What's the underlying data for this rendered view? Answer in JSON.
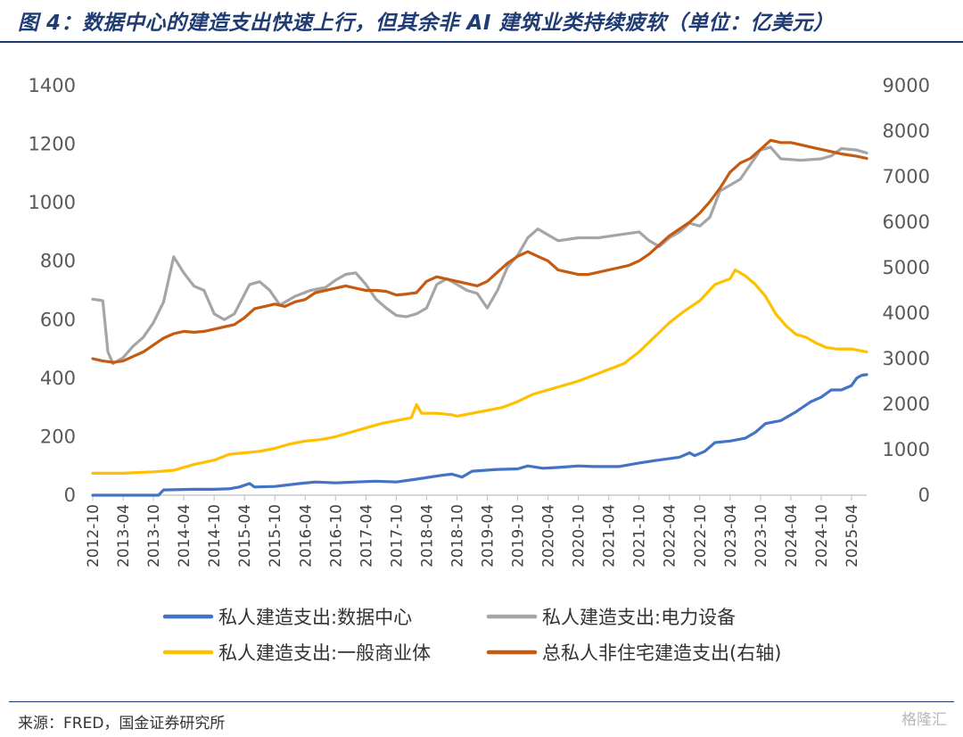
{
  "title": "图 4：数据中心的建造支出快速上行，但其余非 AI 建筑业类持续疲软（单位：亿美元）",
  "source": "来源：FRED，国金证券研究所",
  "watermark": "格隆汇",
  "colors": {
    "title": "#1f3d73",
    "data_center": "#4472c4",
    "power": "#a5a5a5",
    "commercial": "#ffc000",
    "total": "#c55a11"
  },
  "chart_data": {
    "type": "line",
    "x_tick_labels": [
      "2012-10",
      "2013-04",
      "2013-10",
      "2014-04",
      "2014-10",
      "2015-04",
      "2015-10",
      "2016-04",
      "2016-10",
      "2017-04",
      "2017-10",
      "2018-04",
      "2018-10",
      "2019-04",
      "2019-10",
      "2020-04",
      "2020-10",
      "2021-04",
      "2021-10",
      "2022-04",
      "2022-10",
      "2023-04",
      "2023-10",
      "2024-04",
      "2024-10",
      "2025-04"
    ],
    "x_range": [
      "2012-10",
      "2025-07"
    ],
    "y_left": {
      "min": 0,
      "max": 1400,
      "step": 200,
      "ticks": [
        "0",
        "200",
        "400",
        "600",
        "800",
        "1000",
        "1200",
        "1400"
      ]
    },
    "y_right": {
      "min": 0,
      "max": 9000,
      "step": 1000,
      "ticks": [
        "0",
        "1000",
        "2000",
        "3000",
        "4000",
        "5000",
        "6000",
        "7000",
        "8000",
        "9000"
      ]
    },
    "grid": false,
    "legend_position": "bottom",
    "series": [
      {
        "name": "私人建造支出:数据中心",
        "axis": "left",
        "color": "#4472c4",
        "points": [
          [
            "2012-10",
            0
          ],
          [
            "2013-03",
            0
          ],
          [
            "2013-11",
            0
          ],
          [
            "2013-12",
            18
          ],
          [
            "2014-06",
            20
          ],
          [
            "2014-10",
            20
          ],
          [
            "2015-01",
            22
          ],
          [
            "2015-03",
            28
          ],
          [
            "2015-05",
            40
          ],
          [
            "2015-06",
            28
          ],
          [
            "2015-10",
            30
          ],
          [
            "2016-03",
            40
          ],
          [
            "2016-06",
            45
          ],
          [
            "2016-10",
            42
          ],
          [
            "2017-02",
            45
          ],
          [
            "2017-06",
            48
          ],
          [
            "2017-10",
            45
          ],
          [
            "2018-02",
            55
          ],
          [
            "2018-07",
            68
          ],
          [
            "2018-09",
            72
          ],
          [
            "2018-11",
            62
          ],
          [
            "2019-01",
            82
          ],
          [
            "2019-06",
            88
          ],
          [
            "2019-10",
            90
          ],
          [
            "2019-12",
            100
          ],
          [
            "2020-03",
            92
          ],
          [
            "2020-06",
            95
          ],
          [
            "2020-10",
            100
          ],
          [
            "2021-01",
            98
          ],
          [
            "2021-06",
            98
          ],
          [
            "2021-10",
            110
          ],
          [
            "2022-01",
            118
          ],
          [
            "2022-06",
            130
          ],
          [
            "2022-08",
            145
          ],
          [
            "2022-09",
            135
          ],
          [
            "2022-11",
            150
          ],
          [
            "2023-01",
            180
          ],
          [
            "2023-04",
            185
          ],
          [
            "2023-07",
            195
          ],
          [
            "2023-09",
            215
          ],
          [
            "2023-11",
            245
          ],
          [
            "2024-02",
            255
          ],
          [
            "2024-05",
            285
          ],
          [
            "2024-08",
            320
          ],
          [
            "2024-10",
            335
          ],
          [
            "2024-12",
            360
          ],
          [
            "2025-02",
            360
          ],
          [
            "2025-04",
            375
          ],
          [
            "2025-05",
            400
          ],
          [
            "2025-06",
            410
          ],
          [
            "2025-07",
            412
          ]
        ]
      },
      {
        "name": "私人建造支出:电力设备",
        "axis": "left",
        "color": "#a5a5a5",
        "points": [
          [
            "2012-10",
            670
          ],
          [
            "2012-12",
            665
          ],
          [
            "2013-01",
            490
          ],
          [
            "2013-02",
            450
          ],
          [
            "2013-04",
            470
          ],
          [
            "2013-06",
            510
          ],
          [
            "2013-08",
            540
          ],
          [
            "2013-10",
            590
          ],
          [
            "2013-12",
            660
          ],
          [
            "2014-02",
            815
          ],
          [
            "2014-04",
            760
          ],
          [
            "2014-06",
            715
          ],
          [
            "2014-08",
            700
          ],
          [
            "2014-10",
            620
          ],
          [
            "2014-12",
            600
          ],
          [
            "2015-02",
            620
          ],
          [
            "2015-05",
            720
          ],
          [
            "2015-07",
            730
          ],
          [
            "2015-09",
            700
          ],
          [
            "2015-11",
            650
          ],
          [
            "2016-02",
            680
          ],
          [
            "2016-05",
            700
          ],
          [
            "2016-08",
            710
          ],
          [
            "2016-10",
            735
          ],
          [
            "2016-12",
            755
          ],
          [
            "2017-02",
            760
          ],
          [
            "2017-04",
            720
          ],
          [
            "2017-06",
            670
          ],
          [
            "2017-08",
            640
          ],
          [
            "2017-10",
            615
          ],
          [
            "2017-12",
            610
          ],
          [
            "2018-02",
            620
          ],
          [
            "2018-04",
            640
          ],
          [
            "2018-06",
            720
          ],
          [
            "2018-08",
            740
          ],
          [
            "2018-10",
            720
          ],
          [
            "2018-12",
            700
          ],
          [
            "2019-02",
            690
          ],
          [
            "2019-04",
            640
          ],
          [
            "2019-06",
            700
          ],
          [
            "2019-08",
            780
          ],
          [
            "2019-10",
            820
          ],
          [
            "2019-12",
            880
          ],
          [
            "2020-02",
            910
          ],
          [
            "2020-04",
            890
          ],
          [
            "2020-06",
            870
          ],
          [
            "2020-10",
            880
          ],
          [
            "2021-02",
            880
          ],
          [
            "2021-06",
            890
          ],
          [
            "2021-10",
            900
          ],
          [
            "2021-12",
            870
          ],
          [
            "2022-02",
            850
          ],
          [
            "2022-04",
            880
          ],
          [
            "2022-06",
            900
          ],
          [
            "2022-08",
            930
          ],
          [
            "2022-10",
            920
          ],
          [
            "2022-12",
            950
          ],
          [
            "2023-02",
            1040
          ],
          [
            "2023-04",
            1060
          ],
          [
            "2023-06",
            1080
          ],
          [
            "2023-08",
            1130
          ],
          [
            "2023-10",
            1180
          ],
          [
            "2023-12",
            1190
          ],
          [
            "2024-02",
            1150
          ],
          [
            "2024-06",
            1145
          ],
          [
            "2024-10",
            1150
          ],
          [
            "2024-12",
            1160
          ],
          [
            "2025-02",
            1185
          ],
          [
            "2025-05",
            1180
          ],
          [
            "2025-07",
            1170
          ]
        ]
      },
      {
        "name": "私人建造支出:一般商业体",
        "axis": "left",
        "color": "#ffc000",
        "points": [
          [
            "2012-10",
            75
          ],
          [
            "2013-04",
            75
          ],
          [
            "2013-10",
            80
          ],
          [
            "2014-02",
            85
          ],
          [
            "2014-06",
            105
          ],
          [
            "2014-10",
            120
          ],
          [
            "2015-01",
            140
          ],
          [
            "2015-04",
            145
          ],
          [
            "2015-07",
            150
          ],
          [
            "2015-10",
            160
          ],
          [
            "2016-01",
            175
          ],
          [
            "2016-04",
            185
          ],
          [
            "2016-07",
            190
          ],
          [
            "2016-10",
            200
          ],
          [
            "2017-01",
            215
          ],
          [
            "2017-04",
            230
          ],
          [
            "2017-07",
            245
          ],
          [
            "2017-10",
            255
          ],
          [
            "2018-01",
            265
          ],
          [
            "2018-02",
            310
          ],
          [
            "2018-03",
            280
          ],
          [
            "2018-06",
            280
          ],
          [
            "2018-09",
            275
          ],
          [
            "2018-10",
            270
          ],
          [
            "2019-01",
            280
          ],
          [
            "2019-04",
            290
          ],
          [
            "2019-07",
            300
          ],
          [
            "2019-10",
            320
          ],
          [
            "2020-01",
            345
          ],
          [
            "2020-04",
            360
          ],
          [
            "2020-07",
            375
          ],
          [
            "2020-10",
            390
          ],
          [
            "2021-01",
            410
          ],
          [
            "2021-04",
            430
          ],
          [
            "2021-07",
            450
          ],
          [
            "2021-10",
            490
          ],
          [
            "2022-01",
            540
          ],
          [
            "2022-04",
            590
          ],
          [
            "2022-07",
            630
          ],
          [
            "2022-10",
            665
          ],
          [
            "2023-01",
            720
          ],
          [
            "2023-04",
            740
          ],
          [
            "2023-05",
            770
          ],
          [
            "2023-07",
            750
          ],
          [
            "2023-09",
            720
          ],
          [
            "2023-11",
            680
          ],
          [
            "2024-01",
            620
          ],
          [
            "2024-03",
            580
          ],
          [
            "2024-05",
            550
          ],
          [
            "2024-07",
            540
          ],
          [
            "2024-09",
            520
          ],
          [
            "2024-11",
            505
          ],
          [
            "2025-01",
            500
          ],
          [
            "2025-04",
            500
          ],
          [
            "2025-07",
            490
          ]
        ]
      },
      {
        "name": "总私人非住宅建造支出(右轴)",
        "axis": "right",
        "color": "#c55a11",
        "points": [
          [
            "2012-10",
            3000
          ],
          [
            "2012-12",
            2950
          ],
          [
            "2013-02",
            2920
          ],
          [
            "2013-04",
            2950
          ],
          [
            "2013-06",
            3050
          ],
          [
            "2013-08",
            3150
          ],
          [
            "2013-10",
            3300
          ],
          [
            "2013-12",
            3450
          ],
          [
            "2014-02",
            3550
          ],
          [
            "2014-04",
            3600
          ],
          [
            "2014-06",
            3580
          ],
          [
            "2014-08",
            3600
          ],
          [
            "2014-10",
            3650
          ],
          [
            "2014-12",
            3700
          ],
          [
            "2015-02",
            3750
          ],
          [
            "2015-04",
            3900
          ],
          [
            "2015-06",
            4100
          ],
          [
            "2015-08",
            4150
          ],
          [
            "2015-10",
            4200
          ],
          [
            "2015-12",
            4150
          ],
          [
            "2016-02",
            4250
          ],
          [
            "2016-04",
            4300
          ],
          [
            "2016-06",
            4450
          ],
          [
            "2016-08",
            4500
          ],
          [
            "2016-10",
            4550
          ],
          [
            "2016-12",
            4600
          ],
          [
            "2017-02",
            4550
          ],
          [
            "2017-04",
            4500
          ],
          [
            "2017-06",
            4500
          ],
          [
            "2017-08",
            4480
          ],
          [
            "2017-10",
            4400
          ],
          [
            "2017-12",
            4420
          ],
          [
            "2018-02",
            4450
          ],
          [
            "2018-04",
            4700
          ],
          [
            "2018-06",
            4800
          ],
          [
            "2018-08",
            4750
          ],
          [
            "2018-10",
            4700
          ],
          [
            "2018-12",
            4650
          ],
          [
            "2019-02",
            4600
          ],
          [
            "2019-04",
            4700
          ],
          [
            "2019-06",
            4900
          ],
          [
            "2019-08",
            5100
          ],
          [
            "2019-10",
            5250
          ],
          [
            "2019-12",
            5350
          ],
          [
            "2020-02",
            5250
          ],
          [
            "2020-04",
            5150
          ],
          [
            "2020-06",
            4950
          ],
          [
            "2020-08",
            4900
          ],
          [
            "2020-10",
            4850
          ],
          [
            "2020-12",
            4850
          ],
          [
            "2021-02",
            4900
          ],
          [
            "2021-04",
            4950
          ],
          [
            "2021-06",
            5000
          ],
          [
            "2021-08",
            5050
          ],
          [
            "2021-10",
            5150
          ],
          [
            "2021-12",
            5300
          ],
          [
            "2022-02",
            5500
          ],
          [
            "2022-04",
            5700
          ],
          [
            "2022-06",
            5850
          ],
          [
            "2022-08",
            6000
          ],
          [
            "2022-10",
            6200
          ],
          [
            "2022-12",
            6450
          ],
          [
            "2023-02",
            6750
          ],
          [
            "2023-04",
            7100
          ],
          [
            "2023-06",
            7300
          ],
          [
            "2023-08",
            7400
          ],
          [
            "2023-10",
            7600
          ],
          [
            "2023-12",
            7800
          ],
          [
            "2024-02",
            7750
          ],
          [
            "2024-04",
            7750
          ],
          [
            "2024-06",
            7700
          ],
          [
            "2024-08",
            7650
          ],
          [
            "2024-10",
            7600
          ],
          [
            "2024-12",
            7550
          ],
          [
            "2025-02",
            7500
          ],
          [
            "2025-05",
            7450
          ],
          [
            "2025-07",
            7400
          ]
        ]
      }
    ]
  }
}
